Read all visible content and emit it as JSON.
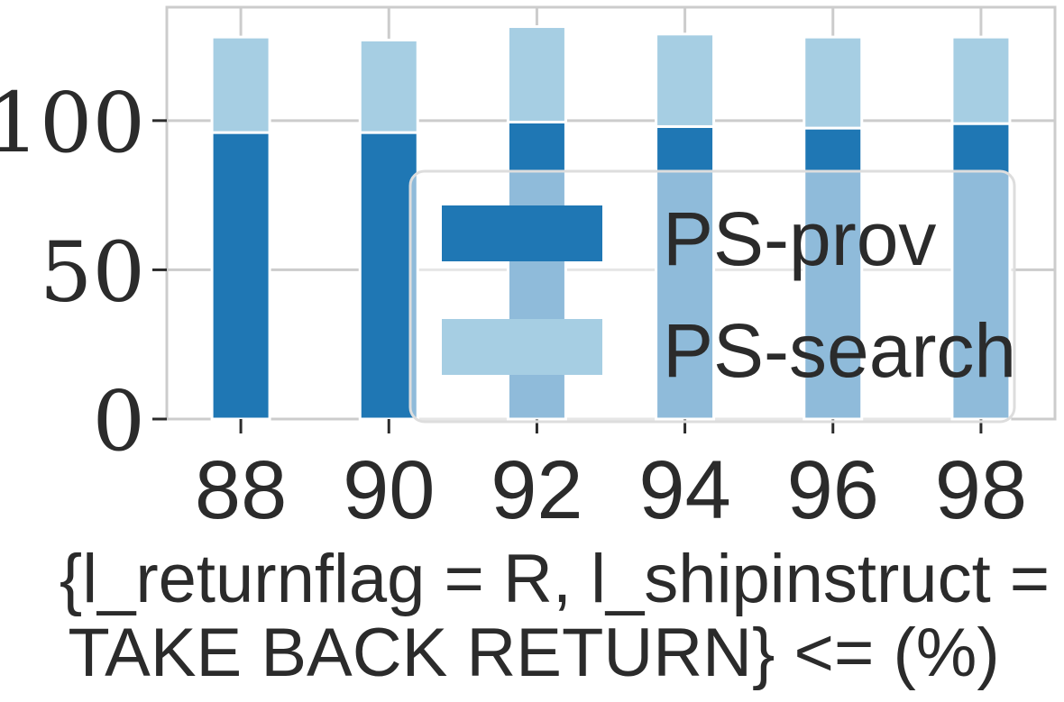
{
  "chart_data": {
    "type": "bar",
    "stacked": true,
    "categories": [
      "88",
      "90",
      "92",
      "94",
      "96",
      "98"
    ],
    "series": [
      {
        "name": "PS-prov",
        "values": [
          96,
          96,
          99.5,
          98,
          97.5,
          99
        ],
        "color": "#1f77b4"
      },
      {
        "name": "PS-search",
        "values": [
          32,
          31,
          32,
          31,
          30.5,
          29
        ],
        "color": "#a6cee3"
      }
    ],
    "yticks": [
      "0",
      "50",
      "100"
    ],
    "ylim": [
      0,
      138
    ],
    "grid": true,
    "legend_position": "lower-right",
    "xlabel_lines": [
      "{l_returnflag = R, l_shipinstruct =",
      "TAKE BACK RETURN} <= (%)"
    ]
  }
}
